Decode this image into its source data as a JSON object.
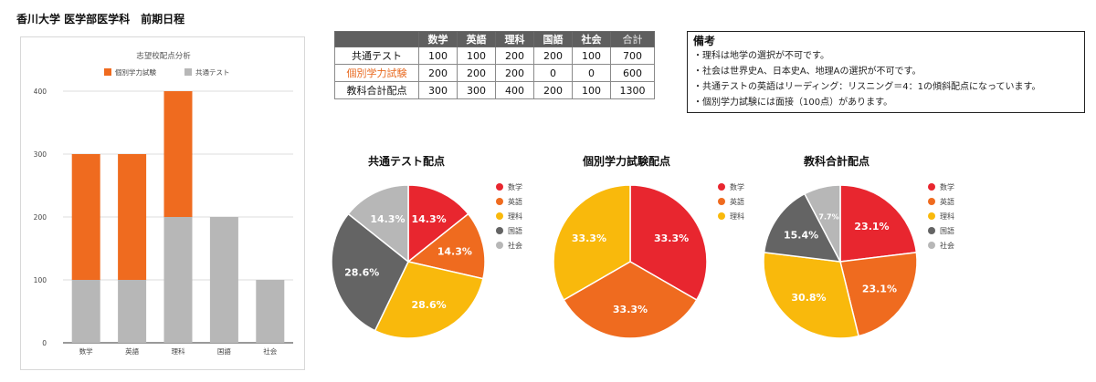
{
  "page": {
    "title": "香川大学 医学部医学科　前期日程"
  },
  "colors": {
    "kyotsu": "#b7b7b7",
    "kobetsu": "#ef6b1f",
    "subjects": {
      "数学": "#e8262f",
      "英語": "#ef6b1f",
      "理科": "#f9b90c",
      "国語": "#646464",
      "社会": "#b7b7b7"
    }
  },
  "table": {
    "headers": [
      "",
      "数学",
      "英語",
      "理科",
      "国語",
      "社会",
      "合計"
    ],
    "rows": [
      {
        "label": "共通テスト",
        "values": [
          "100",
          "100",
          "200",
          "200",
          "100",
          "700"
        ]
      },
      {
        "label": "個別学力試験",
        "values": [
          "200",
          "200",
          "200",
          "0",
          "0",
          "600"
        ]
      },
      {
        "label": "教科合計配点",
        "values": [
          "300",
          "300",
          "400",
          "200",
          "100",
          "1300"
        ]
      }
    ]
  },
  "notes": {
    "title": "備考",
    "items": [
      "・理科は地学の選択が不可です。",
      "・社会は世界史A、日本史A、地理Aの選択が不可です。",
      "・共通テストの英語はリーディング：リスニング＝4：1の傾斜配点になっています。",
      "・個別学力試験には面接（100点）があります。"
    ]
  },
  "chart_data": [
    {
      "type": "bar",
      "stacked": true,
      "title": "志望校配点分析",
      "categories": [
        "数学",
        "英語",
        "理科",
        "国語",
        "社会"
      ],
      "series": [
        {
          "name": "共通テスト",
          "values": [
            100,
            100,
            200,
            200,
            100
          ]
        },
        {
          "name": "個別学力試験",
          "values": [
            200,
            200,
            200,
            0,
            0
          ]
        }
      ],
      "legend_order": [
        "個別学力試験",
        "共通テスト"
      ],
      "xlabel": "",
      "ylabel": "",
      "ylim": [
        0,
        400
      ],
      "yticks": [
        0,
        100,
        200,
        300,
        400
      ],
      "grid": true,
      "legend": "top"
    },
    {
      "type": "pie",
      "title": "共通テスト配点",
      "labels": [
        "数学",
        "英語",
        "理科",
        "国語",
        "社会"
      ],
      "values": [
        100,
        100,
        200,
        200,
        100
      ],
      "data_labels": [
        "14.3%",
        "14.3%",
        "28.6%",
        "28.6%",
        "14.3%"
      ],
      "legend": "right"
    },
    {
      "type": "pie",
      "title": "個別学力試験配点",
      "labels": [
        "数学",
        "英語",
        "理科"
      ],
      "values": [
        200,
        200,
        200
      ],
      "data_labels": [
        "33.3%",
        "33.3%",
        "33.3%"
      ],
      "legend": "right"
    },
    {
      "type": "pie",
      "title": "教科合計配点",
      "labels": [
        "数学",
        "英語",
        "理科",
        "国語",
        "社会"
      ],
      "values": [
        300,
        300,
        400,
        200,
        100
      ],
      "data_labels": [
        "23.1%",
        "23.1%",
        "30.8%",
        "15.4%",
        "7.7%"
      ],
      "legend": "right"
    }
  ]
}
